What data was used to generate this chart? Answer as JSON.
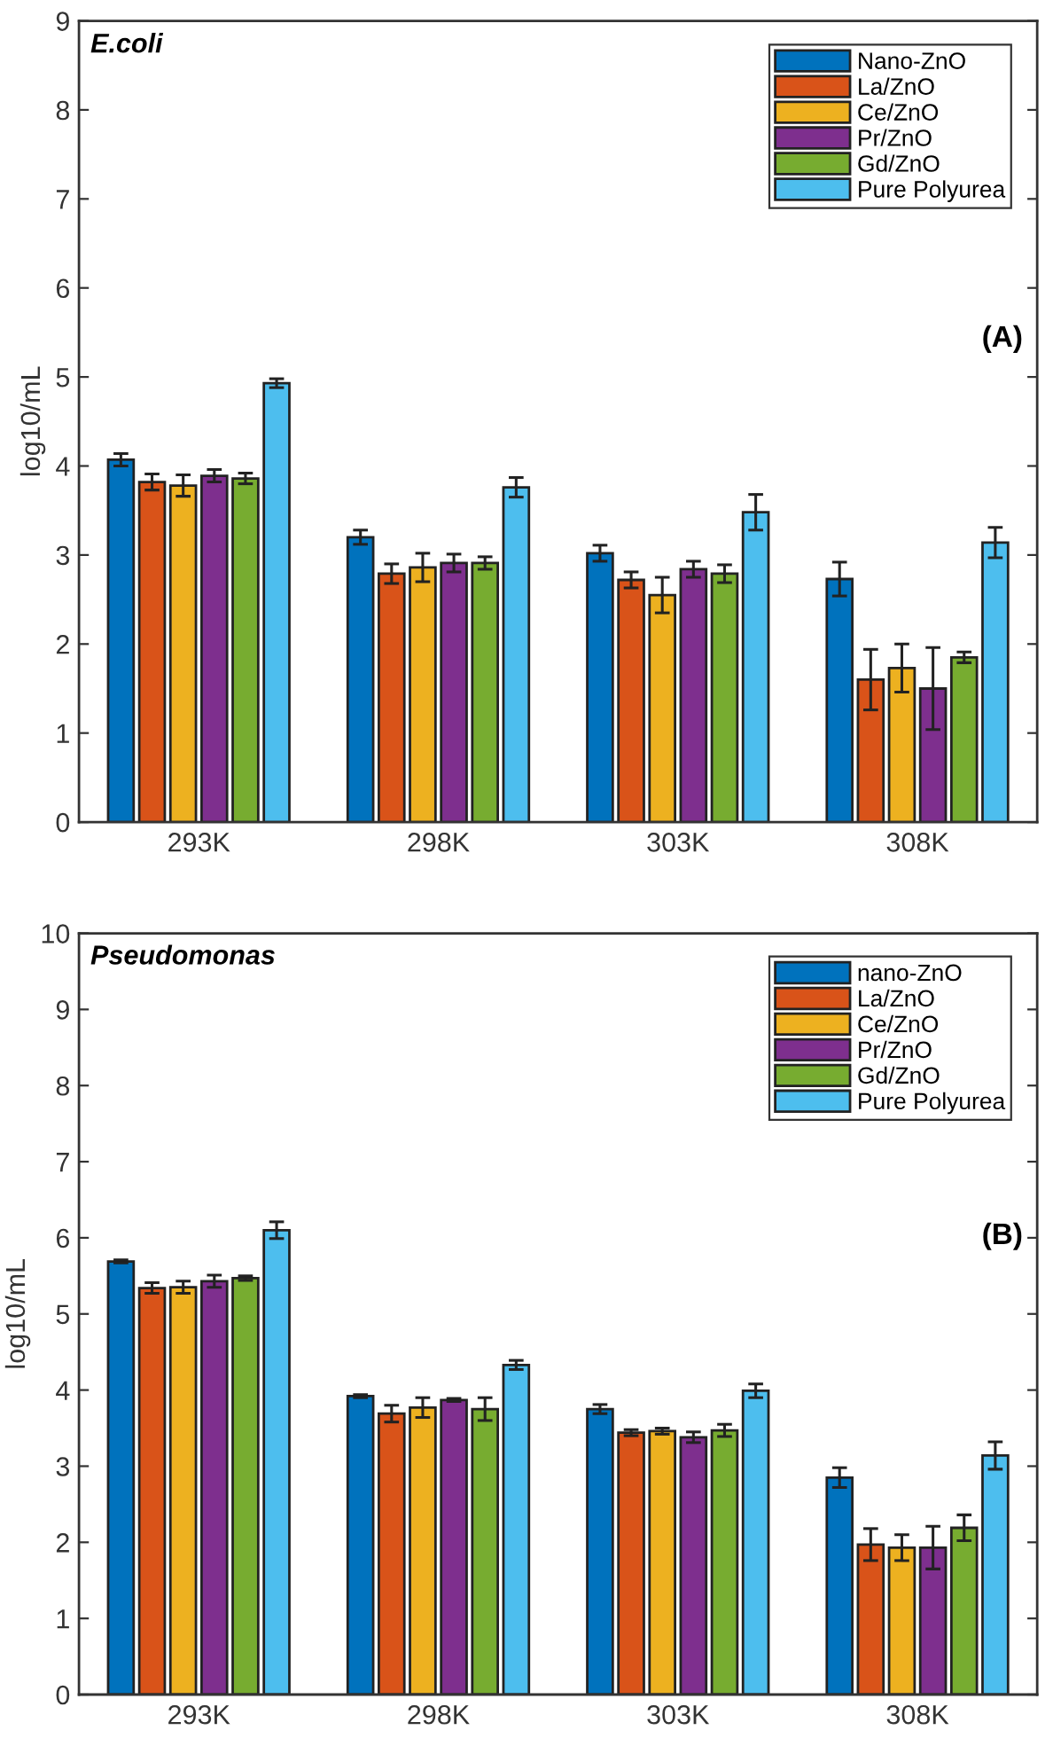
{
  "chart_data": [
    {
      "type": "bar",
      "ylabel": "log10/mL",
      "annotations": [
        "E.coli",
        "(A)"
      ],
      "categories": [
        "293K",
        "298K",
        "303K",
        "308K"
      ],
      "ylim": [
        0,
        9
      ],
      "yticks": [
        0,
        1,
        2,
        3,
        4,
        5,
        6,
        7,
        8,
        9
      ],
      "grid": false,
      "legend": "top right",
      "series": [
        {
          "name": "Nano-ZnO",
          "color": "#0072bd",
          "values": [
            4.07,
            3.2,
            3.02,
            2.73
          ],
          "errors": [
            0.07,
            0.08,
            0.09,
            0.19
          ]
        },
        {
          "name": "La/ZnO",
          "color": "#d95319",
          "values": [
            3.82,
            2.79,
            2.72,
            1.6
          ],
          "errors": [
            0.09,
            0.11,
            0.09,
            0.34
          ]
        },
        {
          "name": "Ce/ZnO",
          "color": "#edb120",
          "values": [
            3.78,
            2.86,
            2.55,
            1.73
          ],
          "errors": [
            0.12,
            0.16,
            0.2,
            0.27
          ]
        },
        {
          "name": "Pr/ZnO",
          "color": "#7e2f8e",
          "values": [
            3.89,
            2.91,
            2.84,
            1.5
          ],
          "errors": [
            0.07,
            0.1,
            0.09,
            0.46
          ]
        },
        {
          "name": "Gd/ZnO",
          "color": "#77ac30",
          "values": [
            3.86,
            2.91,
            2.79,
            1.85
          ],
          "errors": [
            0.06,
            0.07,
            0.1,
            0.06
          ]
        },
        {
          "name": "Pure Polyurea",
          "color": "#4dbeee",
          "values": [
            4.93,
            3.76,
            3.48,
            3.14
          ],
          "errors": [
            0.05,
            0.11,
            0.2,
            0.17
          ]
        }
      ]
    },
    {
      "type": "bar",
      "ylabel": "log10/mL",
      "annotations": [
        "Pseudomonas",
        "(B)"
      ],
      "categories": [
        "293K",
        "298K",
        "303K",
        "308K"
      ],
      "ylim": [
        0,
        10
      ],
      "yticks": [
        0,
        1,
        2,
        3,
        4,
        5,
        6,
        7,
        8,
        9,
        10
      ],
      "grid": false,
      "legend": "top right",
      "series": [
        {
          "name": "nano-ZnO",
          "color": "#0072bd",
          "values": [
            5.69,
            3.92,
            3.75,
            2.85
          ],
          "errors": [
            0.02,
            0.02,
            0.06,
            0.13
          ]
        },
        {
          "name": "La/ZnO",
          "color": "#d95319",
          "values": [
            5.34,
            3.69,
            3.44,
            1.97
          ],
          "errors": [
            0.07,
            0.11,
            0.04,
            0.21
          ]
        },
        {
          "name": "Ce/ZnO",
          "color": "#edb120",
          "values": [
            5.35,
            3.77,
            3.46,
            1.93
          ],
          "errors": [
            0.08,
            0.13,
            0.04,
            0.17
          ]
        },
        {
          "name": "Pr/ZnO",
          "color": "#7e2f8e",
          "values": [
            5.43,
            3.87,
            3.38,
            1.93
          ],
          "errors": [
            0.08,
            0.02,
            0.07,
            0.28
          ]
        },
        {
          "name": "Gd/ZnO",
          "color": "#77ac30",
          "values": [
            5.47,
            3.75,
            3.47,
            2.19
          ],
          "errors": [
            0.03,
            0.15,
            0.08,
            0.17
          ]
        },
        {
          "name": "Pure Polyurea",
          "color": "#4dbeee",
          "values": [
            6.1,
            4.33,
            3.99,
            3.14
          ],
          "errors": [
            0.11,
            0.06,
            0.09,
            0.18
          ]
        }
      ]
    }
  ]
}
